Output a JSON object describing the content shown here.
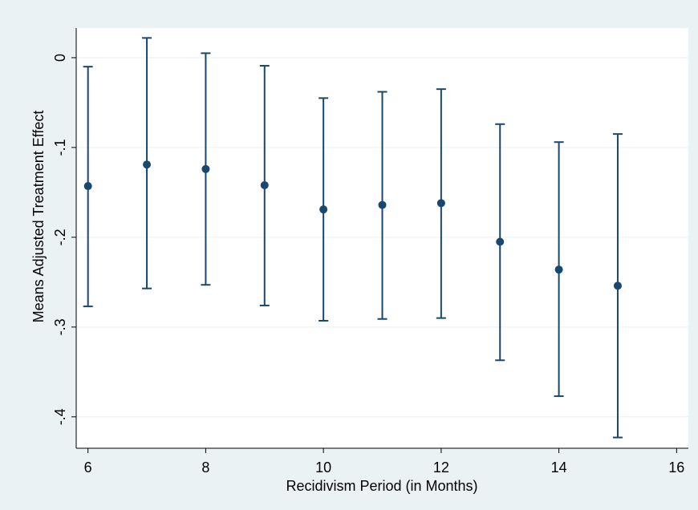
{
  "chart_data": {
    "type": "scatter",
    "title": "",
    "xlabel": "Recidivism Period (in Months)",
    "ylabel": "Means Adjusted Treatment Effect",
    "xlim": [
      5.8,
      16.2
    ],
    "ylim": [
      -0.435,
      0.033
    ],
    "x_ticks": [
      6,
      8,
      10,
      12,
      14,
      16
    ],
    "x_tick_labels": [
      "6",
      "8",
      "10",
      "12",
      "14",
      "16"
    ],
    "y_ticks": [
      0,
      -0.1,
      -0.2,
      -0.3,
      -0.4
    ],
    "y_tick_labels": [
      "0",
      "-.1",
      "-.2",
      "-.3",
      "-.4"
    ],
    "grid": "horizontal",
    "legend": "none",
    "series": [
      {
        "x": [
          6,
          7,
          8,
          9,
          10,
          11,
          12,
          13,
          14,
          15
        ],
        "y": [
          -0.143,
          -0.119,
          -0.124,
          -0.142,
          -0.169,
          -0.164,
          -0.162,
          -0.205,
          -0.236,
          -0.254
        ],
        "ci_low": [
          -0.277,
          -0.257,
          -0.253,
          -0.276,
          -0.293,
          -0.291,
          -0.29,
          -0.337,
          -0.377,
          -0.423
        ],
        "ci_high": [
          -0.01,
          0.022,
          0.005,
          -0.009,
          -0.045,
          -0.038,
          -0.035,
          -0.074,
          -0.094,
          -0.085
        ]
      }
    ],
    "colors": {
      "marker": "#1a476f",
      "errorbar": "#1a476f",
      "plot_background": "#ffffff",
      "outer_background": "#eaf2f3",
      "grid": "#eaf2f3"
    }
  }
}
